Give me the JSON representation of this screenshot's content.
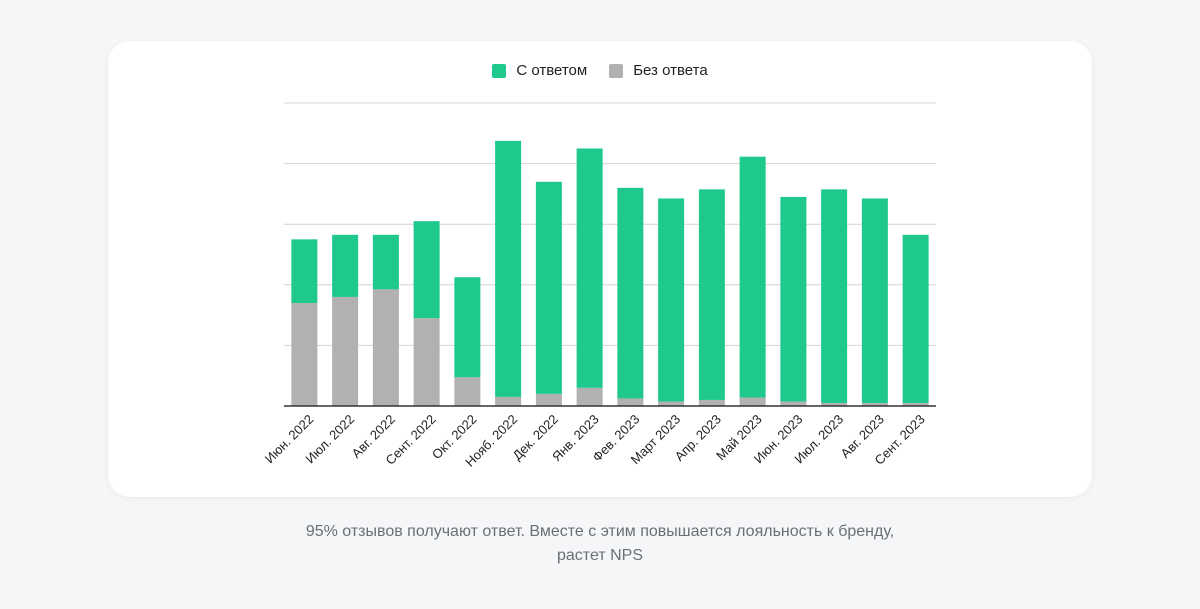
{
  "colors": {
    "answered": "#1ec98b",
    "unanswered": "#b1b1b1",
    "grid": "#d4d4d4",
    "axis": "#333333"
  },
  "chart_data": {
    "type": "bar",
    "stacked": true,
    "legend": [
      "С ответом",
      "Без ответа"
    ],
    "categories": [
      "Июн. 2022",
      "Июл. 2022",
      "Авг. 2022",
      "Сент. 2022",
      "Окт. 2022",
      "Нояб. 2022",
      "Дек. 2022",
      "Янв. 2023",
      "Фев. 2023",
      "Март 2023",
      "Апр. 2023",
      "Май 2023",
      "Июн. 2023",
      "Июл. 2023",
      "Авг. 2023",
      "Сент. 2023"
    ],
    "series": [
      {
        "name": "Без ответа",
        "values": [
          34,
          36,
          38.5,
          29,
          9.5,
          3,
          4,
          6,
          2.5,
          1.5,
          2,
          2.8,
          1.5,
          1,
          1,
          1
        ]
      },
      {
        "name": "С ответом",
        "values": [
          21,
          20.5,
          18,
          32,
          33,
          84.5,
          70,
          79,
          69.5,
          67,
          69.5,
          79.5,
          67.5,
          70.5,
          67.5,
          55.5
        ]
      }
    ],
    "ylim": [
      0,
      100
    ],
    "grid": true,
    "y_tick_labels": false
  },
  "caption": {
    "line1": "95% отзывов получают ответ. Вместе с этим повышается лояльность к бренду,",
    "line2": "растет NPS"
  }
}
